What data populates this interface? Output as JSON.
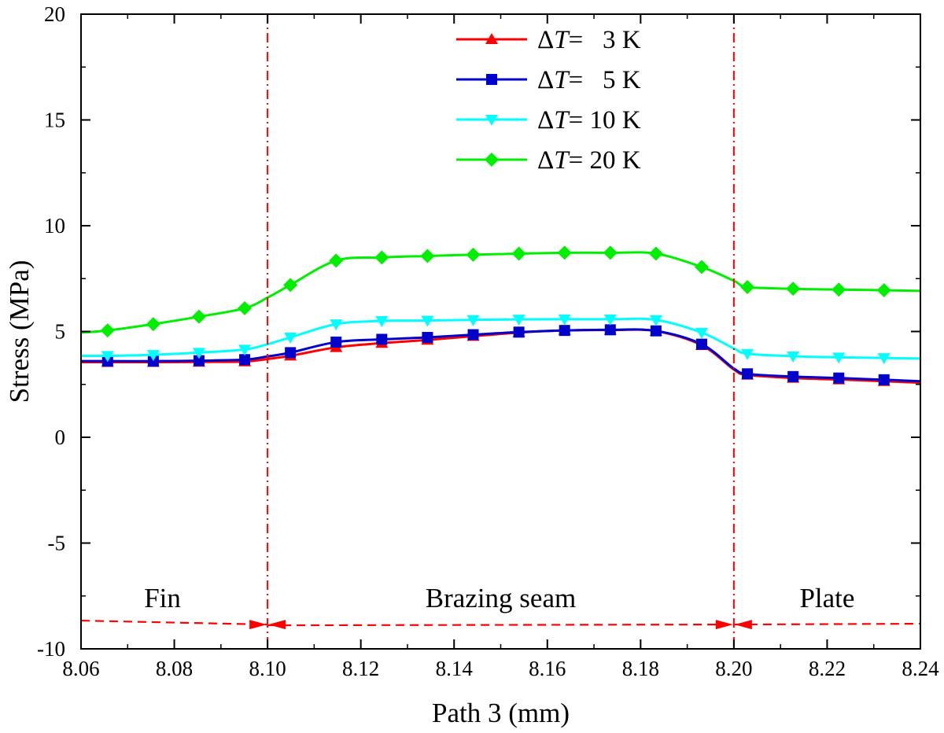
{
  "chart_data": {
    "type": "line",
    "xlabel": "Path 3 (mm)",
    "ylabel": "Stress (MPa)",
    "xlim": [
      8.06,
      8.24
    ],
    "ylim": [
      -10,
      20
    ],
    "x_ticks": [
      "8.06",
      "8.08",
      "8.10",
      "8.12",
      "8.14",
      "8.16",
      "8.18",
      "8.20",
      "8.22",
      "8.24"
    ],
    "y_ticks": [
      "-10",
      "-5",
      "0",
      "5",
      "10",
      "15",
      "20"
    ],
    "grid": false,
    "legend_position": "top-center",
    "series": [
      {
        "name": "ΔT=   3 K",
        "legend_prefix": "Δ",
        "legend_var": "T",
        "legend_suffix": "=   3 K",
        "color": "#ff0000",
        "marker": "triangle-up",
        "x": [
          8.06,
          8.0657,
          8.0755,
          8.0853,
          8.0951,
          8.1,
          8.1049,
          8.1147,
          8.1245,
          8.1343,
          8.1441,
          8.1539,
          8.1637,
          8.1735,
          8.1833,
          8.1931,
          8.2,
          8.2029,
          8.2127,
          8.2225,
          8.2322,
          8.24
        ],
        "y": [
          3.55,
          3.55,
          3.55,
          3.56,
          3.58,
          3.7,
          3.85,
          4.25,
          4.45,
          4.6,
          4.78,
          4.95,
          5.05,
          5.07,
          5.02,
          4.35,
          3.2,
          2.95,
          2.8,
          2.73,
          2.65,
          2.58
        ],
        "marker_x": [
          8.0657,
          8.0755,
          8.0853,
          8.0951,
          8.1049,
          8.1147,
          8.1245,
          8.1343,
          8.1441,
          8.1539,
          8.1637,
          8.1735,
          8.1833,
          8.1931,
          8.2029,
          8.2127,
          8.2225,
          8.2322
        ]
      },
      {
        "name": "ΔT=   5 K",
        "legend_prefix": "Δ",
        "legend_var": "T",
        "legend_suffix": "=   5 K",
        "color": "#0000cc",
        "marker": "square",
        "x": [
          8.06,
          8.0657,
          8.0755,
          8.0853,
          8.0951,
          8.1,
          8.1049,
          8.1147,
          8.1245,
          8.1343,
          8.1441,
          8.1539,
          8.1637,
          8.1735,
          8.1833,
          8.1931,
          8.2,
          8.2029,
          8.2127,
          8.2225,
          8.2322,
          8.24
        ],
        "y": [
          3.6,
          3.6,
          3.6,
          3.62,
          3.67,
          3.82,
          4.0,
          4.5,
          4.63,
          4.72,
          4.85,
          4.97,
          5.05,
          5.08,
          5.03,
          4.4,
          3.25,
          3.0,
          2.87,
          2.8,
          2.72,
          2.65
        ],
        "marker_x": [
          8.0657,
          8.0755,
          8.0853,
          8.0951,
          8.1049,
          8.1147,
          8.1245,
          8.1343,
          8.1441,
          8.1539,
          8.1637,
          8.1735,
          8.1833,
          8.1931,
          8.2029,
          8.2127,
          8.2225,
          8.2322
        ]
      },
      {
        "name": "ΔT= 10 K",
        "legend_prefix": "Δ",
        "legend_var": "T",
        "legend_suffix": "= 10 K",
        "color": "#00ffff",
        "marker": "triangle-down",
        "x": [
          8.06,
          8.0657,
          8.0755,
          8.0853,
          8.0951,
          8.1,
          8.1049,
          8.1147,
          8.1245,
          8.1343,
          8.1441,
          8.1539,
          8.1637,
          8.1735,
          8.1833,
          8.1931,
          8.2,
          8.2029,
          8.2127,
          8.2225,
          8.2322,
          8.24
        ],
        "y": [
          3.85,
          3.85,
          3.9,
          4.0,
          4.15,
          4.4,
          4.72,
          5.35,
          5.5,
          5.52,
          5.55,
          5.57,
          5.58,
          5.58,
          5.55,
          4.95,
          4.2,
          3.95,
          3.83,
          3.78,
          3.75,
          3.72
        ],
        "marker_x": [
          8.0657,
          8.0755,
          8.0853,
          8.0951,
          8.1049,
          8.1147,
          8.1245,
          8.1343,
          8.1441,
          8.1539,
          8.1637,
          8.1735,
          8.1833,
          8.1931,
          8.2029,
          8.2127,
          8.2225,
          8.2322
        ]
      },
      {
        "name": "ΔT= 20 K",
        "legend_prefix": "Δ",
        "legend_var": "T",
        "legend_suffix": "= 20 K",
        "color": "#00ee00",
        "marker": "diamond",
        "x": [
          8.06,
          8.0657,
          8.0755,
          8.0853,
          8.0951,
          8.1,
          8.1049,
          8.1147,
          8.1245,
          8.1343,
          8.1441,
          8.1539,
          8.1637,
          8.1735,
          8.1833,
          8.1931,
          8.2,
          8.2029,
          8.2127,
          8.2225,
          8.2322,
          8.24
        ],
        "y": [
          4.95,
          5.05,
          5.35,
          5.7,
          6.1,
          6.6,
          7.2,
          8.35,
          8.5,
          8.57,
          8.63,
          8.68,
          8.72,
          8.72,
          8.68,
          8.05,
          7.4,
          7.1,
          7.02,
          6.98,
          6.95,
          6.92
        ],
        "marker_x": [
          8.0657,
          8.0755,
          8.0853,
          8.0951,
          8.1049,
          8.1147,
          8.1245,
          8.1343,
          8.1441,
          8.1539,
          8.1637,
          8.1735,
          8.1833,
          8.1931,
          8.2029,
          8.2127,
          8.2225,
          8.2322
        ]
      }
    ],
    "region_boundaries": [
      8.1,
      8.2
    ],
    "region_arrow_y": -8.85,
    "regions": [
      {
        "label": "Fin",
        "x_start": 8.06,
        "x_end": 8.1
      },
      {
        "label": "Brazing seam",
        "x_start": 8.1,
        "x_end": 8.2
      },
      {
        "label": "Plate",
        "x_start": 8.2,
        "x_end": 8.24
      }
    ],
    "annotation_color": "#ff0000"
  }
}
